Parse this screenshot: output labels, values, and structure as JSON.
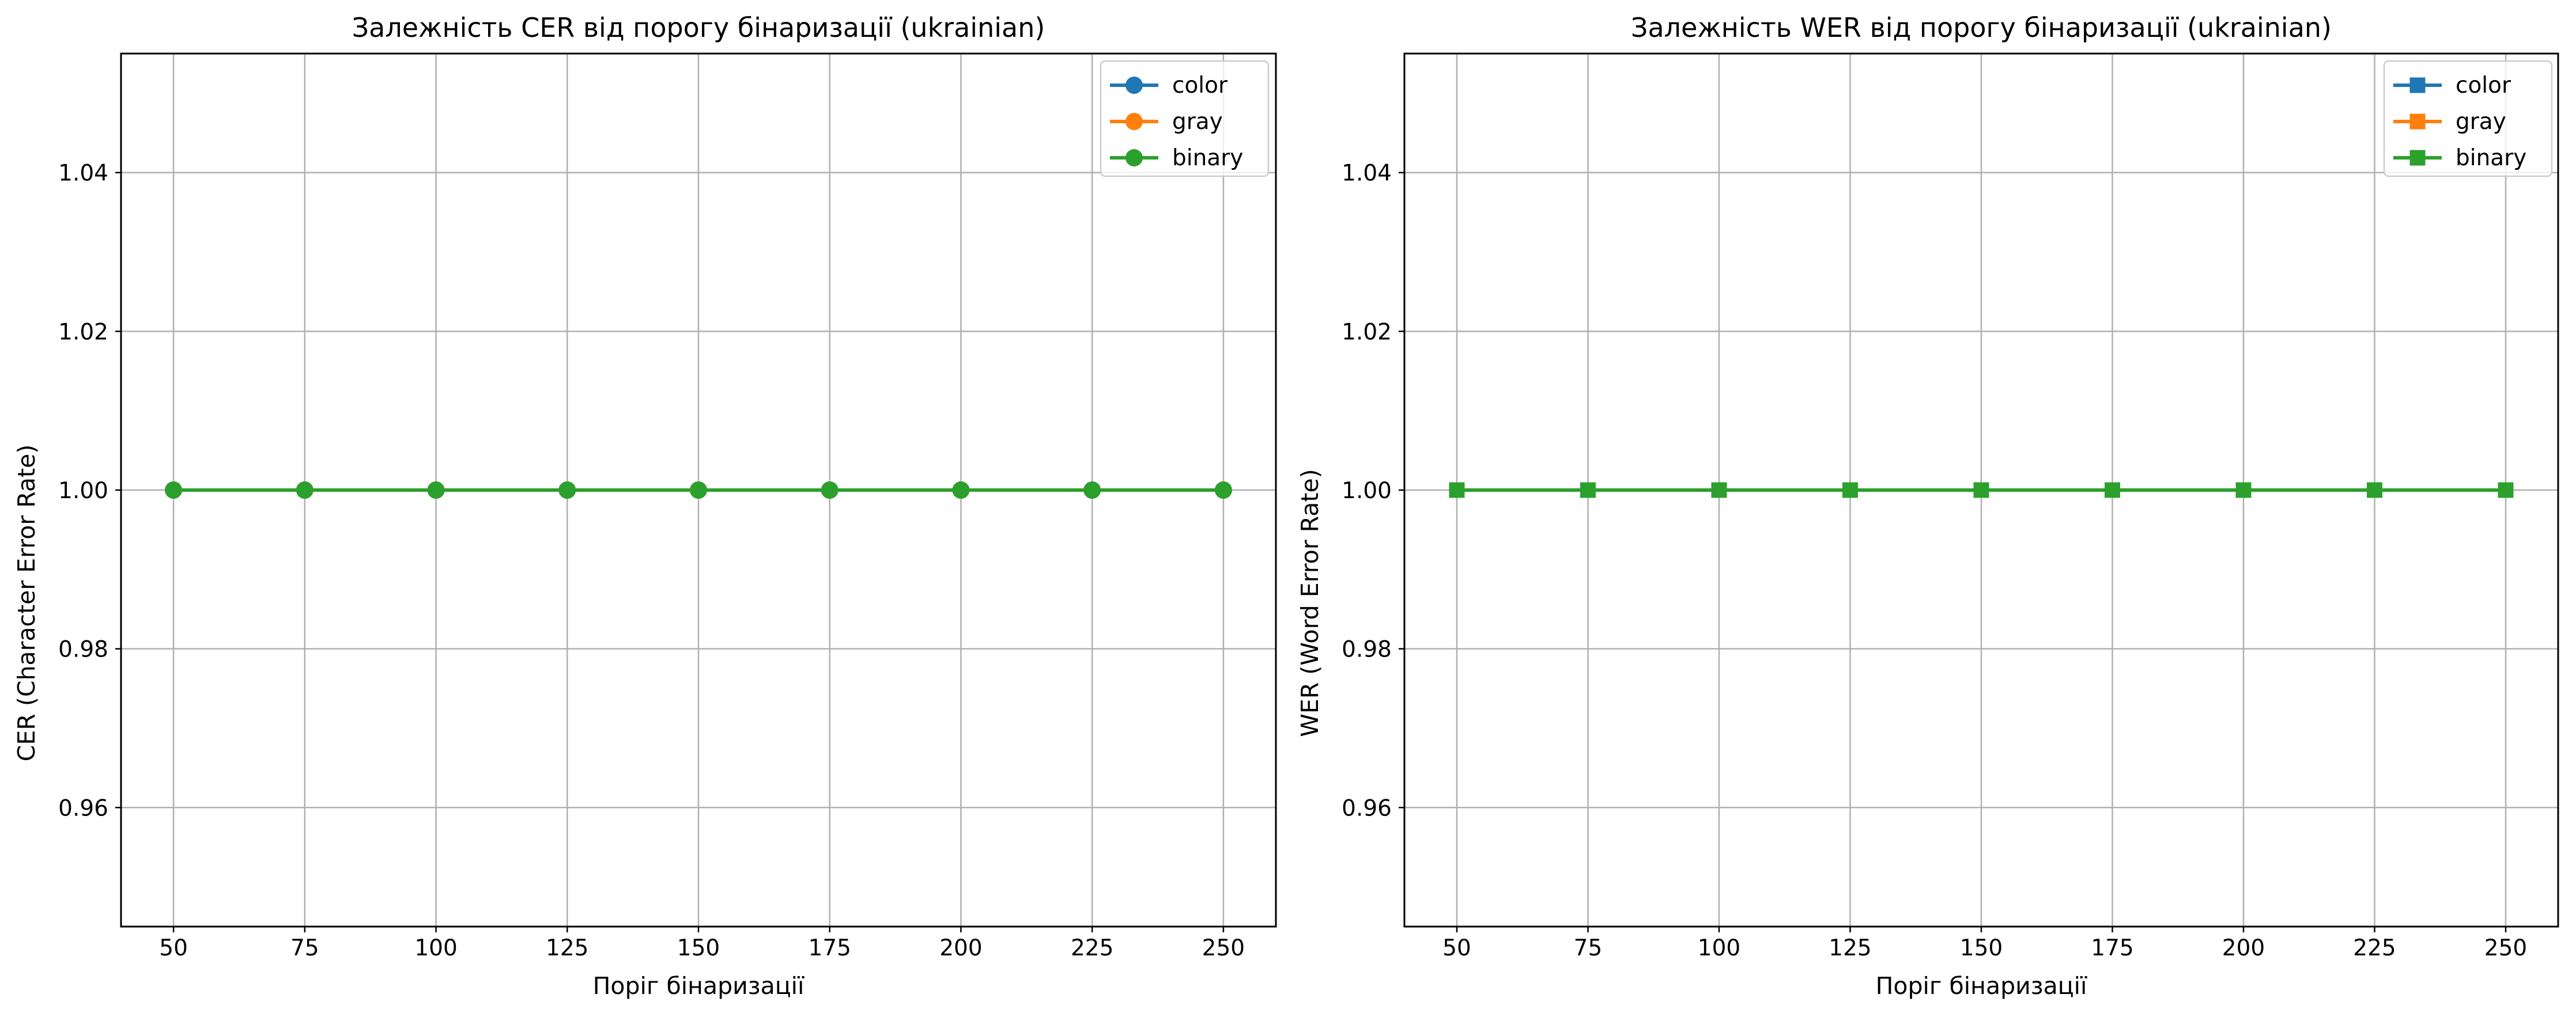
{
  "figure": {
    "background": "#ffffff"
  },
  "chart_data": [
    {
      "type": "line",
      "title": "Залежність CER від порогу бінаризації (ukrainian)",
      "xlabel": "Поріг бінаризації",
      "ylabel": "CER (Character Error Rate)",
      "x": [
        50,
        75,
        100,
        125,
        150,
        175,
        200,
        225,
        250
      ],
      "xticks": [
        "50",
        "75",
        "100",
        "125",
        "150",
        "175",
        "200",
        "225",
        "250"
      ],
      "xlim": [
        40,
        260
      ],
      "yticks": [
        "0.96",
        "0.98",
        "1.00",
        "1.02",
        "1.04"
      ],
      "ytick_values": [
        0.96,
        0.98,
        1.0,
        1.02,
        1.04
      ],
      "ylim": [
        0.945,
        1.055
      ],
      "grid": true,
      "legend_position": "top-right",
      "marker": "circle",
      "series": [
        {
          "name": "color",
          "color": "#1f77b4",
          "values": [
            1.0,
            1.0,
            1.0,
            1.0,
            1.0,
            1.0,
            1.0,
            1.0,
            1.0
          ]
        },
        {
          "name": "gray",
          "color": "#ff7f0e",
          "values": [
            1.0,
            1.0,
            1.0,
            1.0,
            1.0,
            1.0,
            1.0,
            1.0,
            1.0
          ]
        },
        {
          "name": "binary",
          "color": "#2ca02c",
          "values": [
            1.0,
            1.0,
            1.0,
            1.0,
            1.0,
            1.0,
            1.0,
            1.0,
            1.0
          ]
        }
      ]
    },
    {
      "type": "line",
      "title": "Залежність WER від порогу бінаризації (ukrainian)",
      "xlabel": "Поріг бінаризації",
      "ylabel": "WER (Word Error Rate)",
      "x": [
        50,
        75,
        100,
        125,
        150,
        175,
        200,
        225,
        250
      ],
      "xticks": [
        "50",
        "75",
        "100",
        "125",
        "150",
        "175",
        "200",
        "225",
        "250"
      ],
      "xlim": [
        40,
        260
      ],
      "yticks": [
        "0.96",
        "0.98",
        "1.00",
        "1.02",
        "1.04"
      ],
      "ytick_values": [
        0.96,
        0.98,
        1.0,
        1.02,
        1.04
      ],
      "ylim": [
        0.945,
        1.055
      ],
      "grid": true,
      "legend_position": "top-right",
      "marker": "square",
      "series": [
        {
          "name": "color",
          "color": "#1f77b4",
          "values": [
            1.0,
            1.0,
            1.0,
            1.0,
            1.0,
            1.0,
            1.0,
            1.0,
            1.0
          ]
        },
        {
          "name": "gray",
          "color": "#ff7f0e",
          "values": [
            1.0,
            1.0,
            1.0,
            1.0,
            1.0,
            1.0,
            1.0,
            1.0,
            1.0
          ]
        },
        {
          "name": "binary",
          "color": "#2ca02c",
          "values": [
            1.0,
            1.0,
            1.0,
            1.0,
            1.0,
            1.0,
            1.0,
            1.0,
            1.0
          ]
        }
      ]
    }
  ]
}
